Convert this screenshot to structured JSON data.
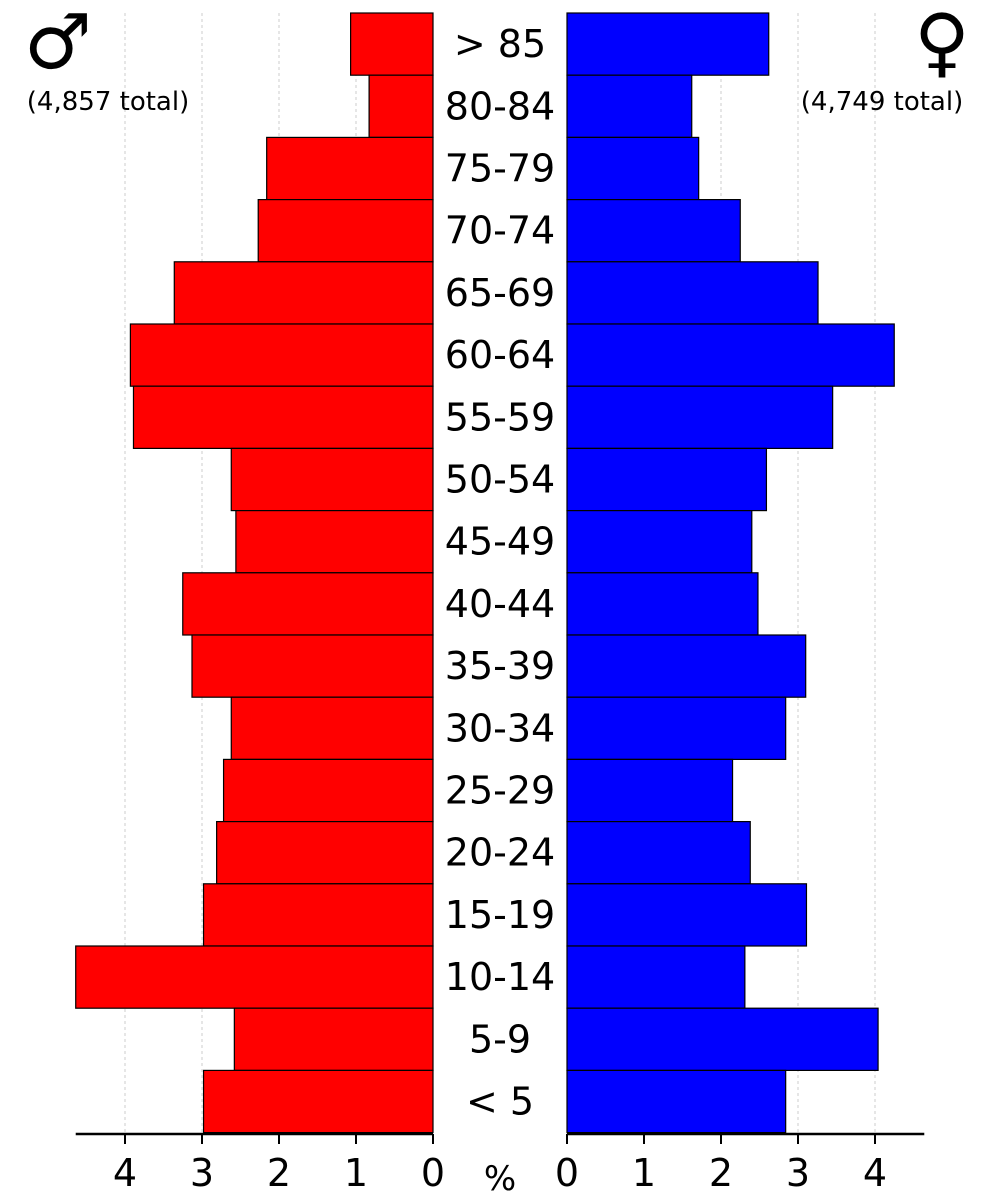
{
  "chart_data": {
    "type": "bar",
    "orientation": "horizontal",
    "layout": "population-pyramid",
    "categories": [
      "> 85",
      "80-84",
      "75-79",
      "70-74",
      "65-69",
      "60-64",
      "55-59",
      "50-54",
      "45-49",
      "40-44",
      "35-39",
      "30-34",
      "25-29",
      "20-24",
      "15-19",
      "10-14",
      "5-9",
      "< 5"
    ],
    "series": [
      {
        "symbol": "♂",
        "total_label": "(4,857 total)",
        "side": "left",
        "color": "#ff0000",
        "values": [
          1.07,
          0.83,
          2.16,
          2.27,
          3.36,
          3.93,
          3.89,
          2.62,
          2.56,
          3.25,
          3.13,
          2.62,
          2.72,
          2.81,
          2.98,
          4.64,
          2.58,
          2.98
        ]
      },
      {
        "symbol": "♀",
        "total_label": "(4,749 total)",
        "side": "right",
        "color": "#0000ff",
        "values": [
          2.62,
          1.62,
          1.71,
          2.25,
          3.26,
          4.25,
          3.45,
          2.59,
          2.4,
          2.48,
          3.1,
          2.84,
          2.15,
          2.38,
          3.11,
          2.31,
          4.04,
          2.84
        ]
      }
    ],
    "xlim": [
      0,
      4.64
    ],
    "xticks": [
      0,
      1,
      2,
      3,
      4
    ],
    "unit_label": "%",
    "title": "",
    "xlabel": "%",
    "ylabel": "",
    "grid": true,
    "legend": "none"
  }
}
